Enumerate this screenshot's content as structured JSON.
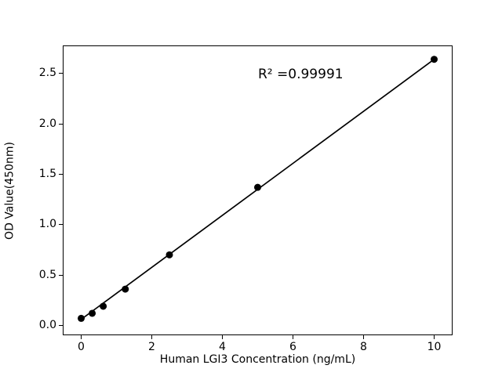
{
  "chart_data": {
    "type": "scatter",
    "title": "",
    "xlabel": "Human LGI3 Concentration (ng/mL)",
    "ylabel": "OD Value(450nm)",
    "annotation": "R² =0.99991",
    "x": [
      0,
      0.3125,
      0.625,
      1.25,
      2.5,
      5,
      10
    ],
    "y": [
      0.07,
      0.12,
      0.19,
      0.36,
      0.7,
      1.37,
      2.64
    ],
    "fit_line": {
      "x_start": 0,
      "y_start": 0.06,
      "x_end": 10,
      "y_end": 2.64
    },
    "xlim": [
      -0.5,
      10.5
    ],
    "ylim": [
      -0.09,
      2.77
    ],
    "xtick_values": [
      0,
      2,
      4,
      6,
      8,
      10
    ],
    "xtick_labels": [
      "0",
      "2",
      "4",
      "6",
      "8",
      "10"
    ],
    "ytick_values": [
      0.0,
      0.5,
      1.0,
      1.5,
      2.0,
      2.5
    ],
    "ytick_labels": [
      "0.0",
      "0.5",
      "1.0",
      "1.5",
      "2.0",
      "2.5"
    ],
    "grid": false,
    "legend_position": "none",
    "marker_size_px": 9,
    "colors": {
      "line": "#000000",
      "marker": "#000000",
      "text": "#000000",
      "background": "#ffffff"
    }
  }
}
